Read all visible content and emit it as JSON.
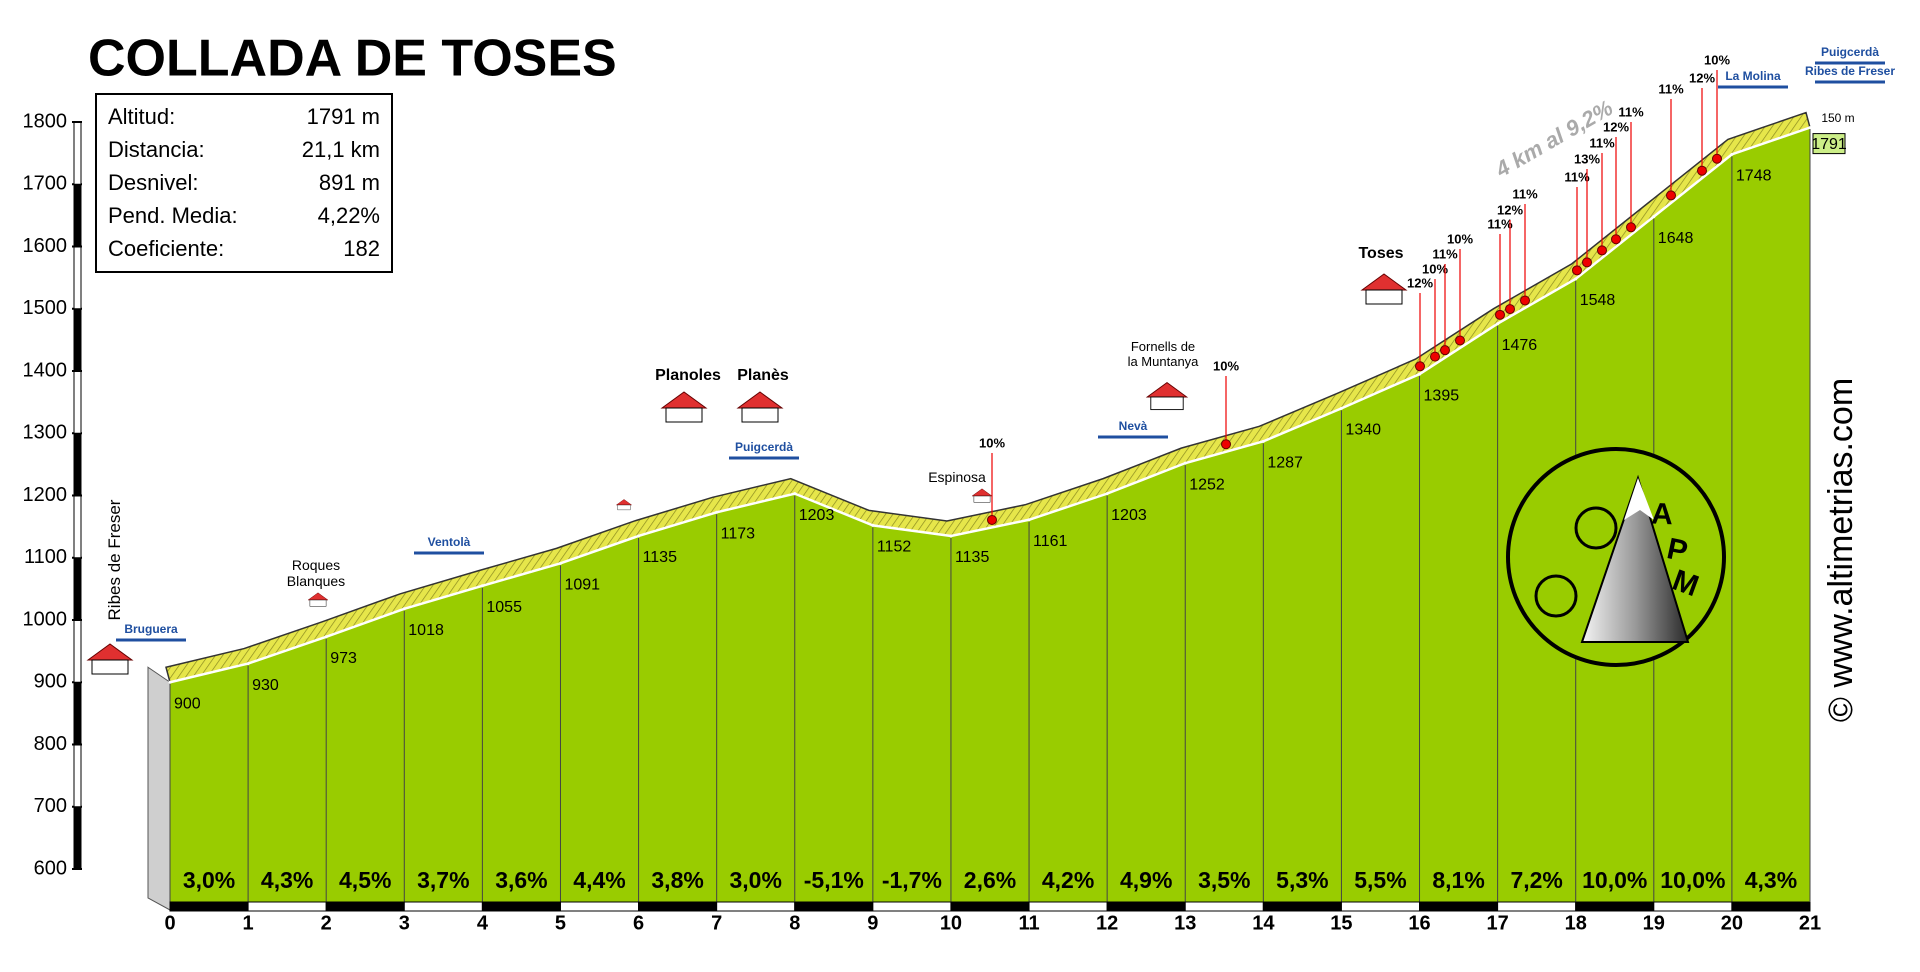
{
  "chart_data": {
    "type": "area",
    "title": "COLLADA DE TOSES",
    "x": [
      0,
      1,
      2,
      3,
      4,
      5,
      6,
      7,
      8,
      9,
      10,
      11,
      12,
      13,
      14,
      15,
      16,
      17,
      18,
      19,
      20,
      21
    ],
    "values": [
      900,
      930,
      973,
      1018,
      1055,
      1091,
      1135,
      1173,
      1203,
      1152,
      1135,
      1161,
      1203,
      1252,
      1287,
      1340,
      1395,
      1476,
      1548,
      1648,
      1748,
      1791
    ],
    "xlim": [
      0,
      21
    ],
    "xticks": [
      0,
      1,
      2,
      3,
      4,
      5,
      6,
      7,
      8,
      9,
      10,
      11,
      12,
      13,
      14,
      15,
      16,
      17,
      18,
      19,
      20,
      21
    ],
    "ylim": [
      600,
      1800
    ],
    "yticks": [
      600,
      700,
      800,
      900,
      1000,
      1100,
      1200,
      1300,
      1400,
      1500,
      1600,
      1700,
      1800
    ],
    "color": "#99cc00",
    "road_color": "#e6e64a",
    "gradients": {
      "values": [
        3.0,
        4.3,
        4.5,
        3.7,
        3.6,
        4.4,
        3.8,
        3.0,
        -5.1,
        -1.7,
        2.6,
        4.2,
        4.9,
        3.5,
        5.3,
        5.5,
        8.1,
        7.2,
        10.0,
        10.0,
        4.3
      ],
      "value_labels": [
        "3,0%",
        "4,3%",
        "4,5%",
        "3,7%",
        "3,6%",
        "4,4%",
        "3,8%",
        "3,0%",
        "-5,1%",
        "-1,7%",
        "2,6%",
        "4,2%",
        "4,9%",
        "3,5%",
        "5,3%",
        "5,5%",
        "8,1%",
        "7,2%",
        "10,0%",
        "10,0%",
        "4,3%"
      ]
    },
    "stats": [
      [
        "Altitud:",
        "1791 m"
      ],
      [
        "Distancia:",
        "21,1 km"
      ],
      [
        "Desnivel:",
        "891 m"
      ],
      [
        "Pend. Media:",
        "4,22%"
      ],
      [
        "Coeficiente:",
        "182"
      ]
    ],
    "steep": {
      "values": [
        10,
        10,
        12,
        10,
        11,
        10,
        11,
        12,
        11,
        11,
        13,
        11,
        12,
        11,
        11,
        12,
        10
      ],
      "value_labels": [
        "10%",
        "10%",
        "12%",
        "10%",
        "11%",
        "10%",
        "11%",
        "12%",
        "11%",
        "11%",
        "13%",
        "11%",
        "12%",
        "11%",
        "11%",
        "12%",
        "10%"
      ]
    },
    "annotations": [
      [
        "Ribes de Freser"
      ],
      [
        "Bruguera"
      ],
      [
        "Roques",
        "Blanques"
      ],
      [
        "Ventolà"
      ],
      [
        "Planoles"
      ],
      [
        "Planès"
      ],
      [
        "Puigcerdà"
      ],
      [
        "Espinosa"
      ],
      [
        "Fornells de",
        "la Muntanya"
      ],
      [
        "Nevà"
      ],
      [
        "Toses"
      ],
      [
        "La Molina"
      ],
      [
        "Puigcerdà"
      ],
      [
        "Ribes de Freser"
      ],
      [
        "150 m"
      ]
    ],
    "climb_note": "4 km al 9,2%",
    "credit": "© www.altimetrias.com",
    "logo": [
      "A",
      "P",
      "M"
    ]
  }
}
